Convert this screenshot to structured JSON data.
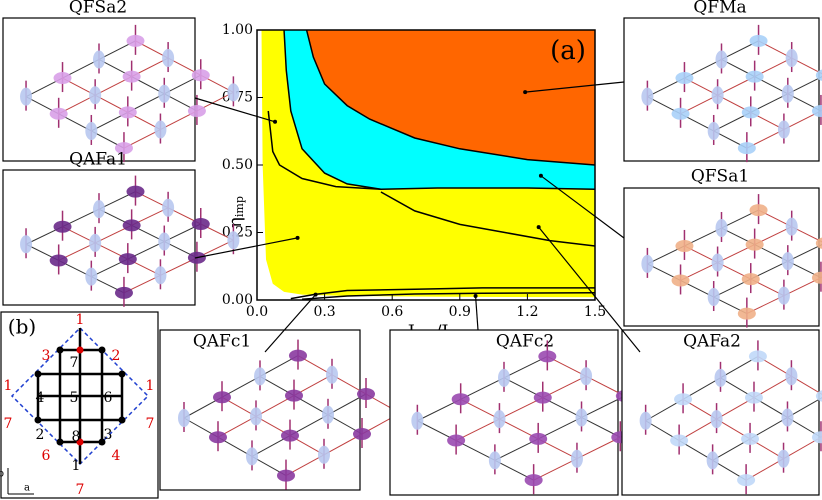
{
  "chart_data": {
    "type": "phase-diagram",
    "panel_label": "(a)",
    "xlabel": [
      {
        "text": "J"
      },
      {
        "sub": "imp"
      },
      {
        "text": "/J"
      },
      {
        "sub": "host"
      }
    ],
    "ylabel": [
      {
        "text": "η"
      },
      {
        "sub": "imp"
      }
    ],
    "xlim": [
      0,
      1.5
    ],
    "ylim": [
      0,
      1
    ],
    "xticks": [
      {
        "value": 0,
        "label": "0.0"
      },
      0.3,
      0.6,
      0.9,
      1.2,
      1.5
    ],
    "yticks": [
      {
        "value": 0,
        "label": "0.00"
      },
      0.25,
      {
        "value": 0.5,
        "label": "0.50"
      },
      0.75,
      {
        "value": 1,
        "label": "1.00"
      }
    ],
    "regions": [
      {
        "color": "#ffff00",
        "x": [
          0,
          1.5,
          1.5,
          0
        ],
        "y": [
          0,
          0,
          1,
          1
        ]
      },
      {
        "color": "#ffffff",
        "x": [
          0,
          0.02,
          0.025,
          0.04,
          0.07,
          0.12,
          0.2,
          0.4,
          0.8,
          1.5,
          1.5,
          0
        ],
        "y": [
          1,
          1,
          0.5,
          0.15,
          0.06,
          0.03,
          0.02,
          0.015,
          0.012,
          0.01,
          0,
          0
        ]
      },
      {
        "color": "#00ffff",
        "x": [
          0.12,
          0.13,
          0.15,
          0.2,
          0.3,
          0.4,
          0.55,
          0.8,
          1.2,
          1.5,
          1.5,
          1.2,
          0.9,
          0.7,
          0.5,
          0.4,
          0.3,
          0.25,
          0.22
        ],
        "y": [
          1,
          0.85,
          0.7,
          0.56,
          0.47,
          0.43,
          0.41,
          0.415,
          0.415,
          0.41,
          0.5,
          0.52,
          0.56,
          0.6,
          0.67,
          0.72,
          0.8,
          0.9,
          1
        ]
      },
      {
        "color": "#ff6600",
        "x": [
          0.22,
          0.25,
          0.3,
          0.4,
          0.5,
          0.7,
          0.9,
          1.2,
          1.5,
          1.5
        ],
        "y": [
          1,
          0.9,
          0.8,
          0.72,
          0.67,
          0.6,
          0.56,
          0.52,
          0.5,
          1
        ]
      }
    ],
    "lines": [
      {
        "x": [
          0.22,
          0.25,
          0.3,
          0.4,
          0.5,
          0.7,
          0.9,
          1.2,
          1.5
        ],
        "y": [
          1,
          0.9,
          0.8,
          0.72,
          0.67,
          0.6,
          0.56,
          0.52,
          0.5
        ]
      },
      {
        "x": [
          0.12,
          0.13,
          0.15,
          0.2,
          0.3,
          0.4,
          0.55,
          0.8,
          1.2,
          1.5
        ],
        "y": [
          1,
          0.85,
          0.7,
          0.56,
          0.47,
          0.43,
          0.41,
          0.415,
          0.415,
          0.41
        ]
      },
      {
        "x": [
          0.05,
          0.07,
          0.1,
          0.2,
          0.35,
          0.55
        ],
        "y": [
          0.7,
          0.55,
          0.5,
          0.45,
          0.42,
          0.41
        ]
      },
      {
        "x": [
          0.55,
          0.7,
          0.9,
          1.1,
          1.3,
          1.5
        ],
        "y": [
          0.4,
          0.33,
          0.28,
          0.25,
          0.22,
          0.2
        ]
      },
      {
        "x": [
          0.15,
          0.25,
          0.4,
          0.7,
          1.0,
          1.5
        ],
        "y": [
          0.005,
          0.02,
          0.035,
          0.04,
          0.045,
          0.045
        ]
      },
      {
        "x": [
          0.2,
          0.4,
          0.7,
          1.0,
          1.5
        ],
        "y": [
          0.003,
          0.015,
          0.022,
          0.025,
          0.027
        ]
      }
    ],
    "insets": [
      {
        "label": "QFSa2",
        "x": 0.08,
        "y": 0.66
      },
      {
        "label": "QAFa1",
        "x": 0.18,
        "y": 0.23
      },
      {
        "label": "QFMa",
        "x": 1.19,
        "y": 0.77
      },
      {
        "label": "QFSa1",
        "x": 1.26,
        "y": 0.46
      },
      {
        "label": "QAFc1",
        "x": 0.26,
        "y": 0.02
      },
      {
        "label": "QAFc2",
        "x": 0.97,
        "y": 0.015
      },
      {
        "label": "QAFa2",
        "x": 1.25,
        "y": 0.27
      }
    ]
  },
  "inset_b": {
    "label": "(b)",
    "black": [
      "7",
      "4",
      "5",
      "6",
      "2",
      "8",
      "3",
      "1"
    ],
    "red": [
      "1",
      "3",
      "2",
      "1",
      "1",
      "7",
      "7",
      "6",
      "4",
      "7"
    ],
    "axes": [
      "b",
      "a"
    ]
  }
}
